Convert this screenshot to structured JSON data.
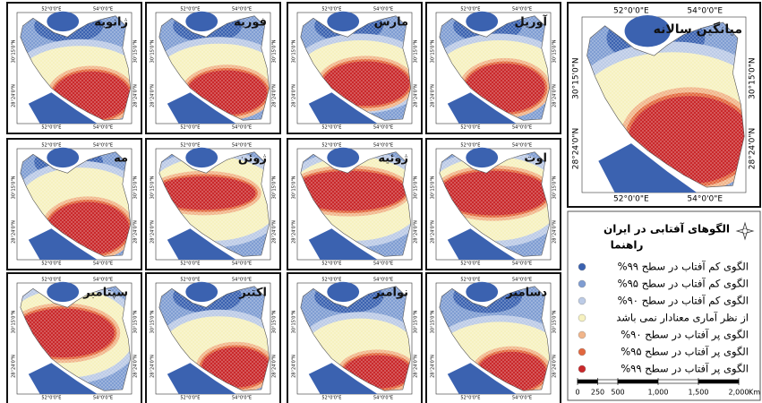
{
  "maps": [
    {
      "title": "ژانویه"
    },
    {
      "title": "فوریه"
    },
    {
      "title": "مارس"
    },
    {
      "title": "آوریل"
    },
    {
      "title": "مه"
    },
    {
      "title": "ژوئن"
    },
    {
      "title": "ژوئیه"
    },
    {
      "title": "اوت"
    },
    {
      "title": "سپتامبر"
    },
    {
      "title": "اکتبر"
    },
    {
      "title": "نوامبر"
    },
    {
      "title": "دسامبر"
    }
  ],
  "axis_labels": {
    "lon": [
      "52°0'0\"E",
      "54°0'0\"E"
    ],
    "lat": [
      "30°15'0\"N",
      "28°24'0\"N"
    ]
  },
  "annual_map": {
    "title": "میانگین سالانه"
  },
  "legend": {
    "title": "الگوهای آفتابی در ایران",
    "subtitle": "راهنما",
    "items": [
      {
        "label": "الگوی کم آفتاب در سطح ۹۹%",
        "color": "#3b62b0"
      },
      {
        "label": "الگوی کم آفتاب در سطح ۹۵%",
        "color": "#7f9dd2"
      },
      {
        "label": "الگوی کم آفتاب در سطح ۹۰%",
        "color": "#bccbe6"
      },
      {
        "label": "از نظر آماری معنادار نمی باشد",
        "color": "#f6f1bf"
      },
      {
        "label": "الگوی پر آفتاب در سطح ۹۰%",
        "color": "#f1b58a"
      },
      {
        "label": "الگوی پر آفتاب در سطح ۹۵%",
        "color": "#e2673f"
      },
      {
        "label": "الگوی پر آفتاب در سطح ۹۹%",
        "color": "#c9282a"
      }
    ]
  },
  "scale_bar": {
    "ticks": [
      0,
      250,
      500,
      {
        "value": 1000,
        "label": "1,000"
      },
      {
        "value": 1500,
        "label": "1,500"
      },
      {
        "value": 2000,
        "label": "2,000"
      }
    ],
    "unit": "Km"
  }
}
